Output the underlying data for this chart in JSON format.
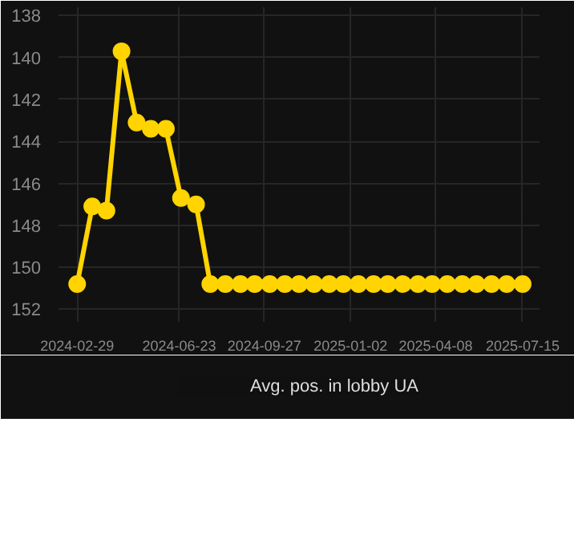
{
  "chart_data": {
    "type": "line",
    "x": [
      "2024-02-29",
      "2024-03-17",
      "2024-04-02",
      "2024-04-19",
      "2024-05-06",
      "2024-05-22",
      "2024-06-08",
      "2024-06-25",
      "2024-07-12",
      "2024-07-28",
      "2024-08-14",
      "2024-08-31",
      "2024-09-16",
      "2024-10-03",
      "2024-10-20",
      "2024-11-05",
      "2024-11-22",
      "2024-12-09",
      "2024-12-25",
      "2025-01-11",
      "2025-01-28",
      "2025-02-13",
      "2025-03-02",
      "2025-03-19",
      "2025-04-04",
      "2025-04-21",
      "2025-05-08",
      "2025-05-24",
      "2025-06-10",
      "2025-06-27",
      "2025-07-15"
    ],
    "series": [
      {
        "name": "Avg. pos. in lobby UA",
        "color": "#ffd400",
        "values": [
          150.8,
          147.1,
          147.3,
          139.7,
          143.1,
          143.4,
          143.4,
          146.7,
          147.0,
          150.8,
          150.8,
          150.8,
          150.8,
          150.8,
          150.8,
          150.8,
          150.8,
          150.8,
          150.8,
          150.8,
          150.8,
          150.8,
          150.8,
          150.8,
          150.8,
          150.8,
          150.8,
          150.8,
          150.8,
          150.8,
          150.8
        ]
      }
    ],
    "ylim": [
      152.6,
      137.6
    ],
    "yticks": [
      138,
      140,
      142,
      144,
      146,
      148,
      150,
      152
    ],
    "xlim": [
      "2024-02-08",
      "2025-08-03"
    ],
    "xticks": [
      "2024-02-29",
      "2024-06-23",
      "2024-09-27",
      "2025-01-02",
      "2025-04-08",
      "2025-07-15"
    ],
    "grid": true,
    "legend": "bottom",
    "marker": "circle",
    "line_style": "solid"
  }
}
